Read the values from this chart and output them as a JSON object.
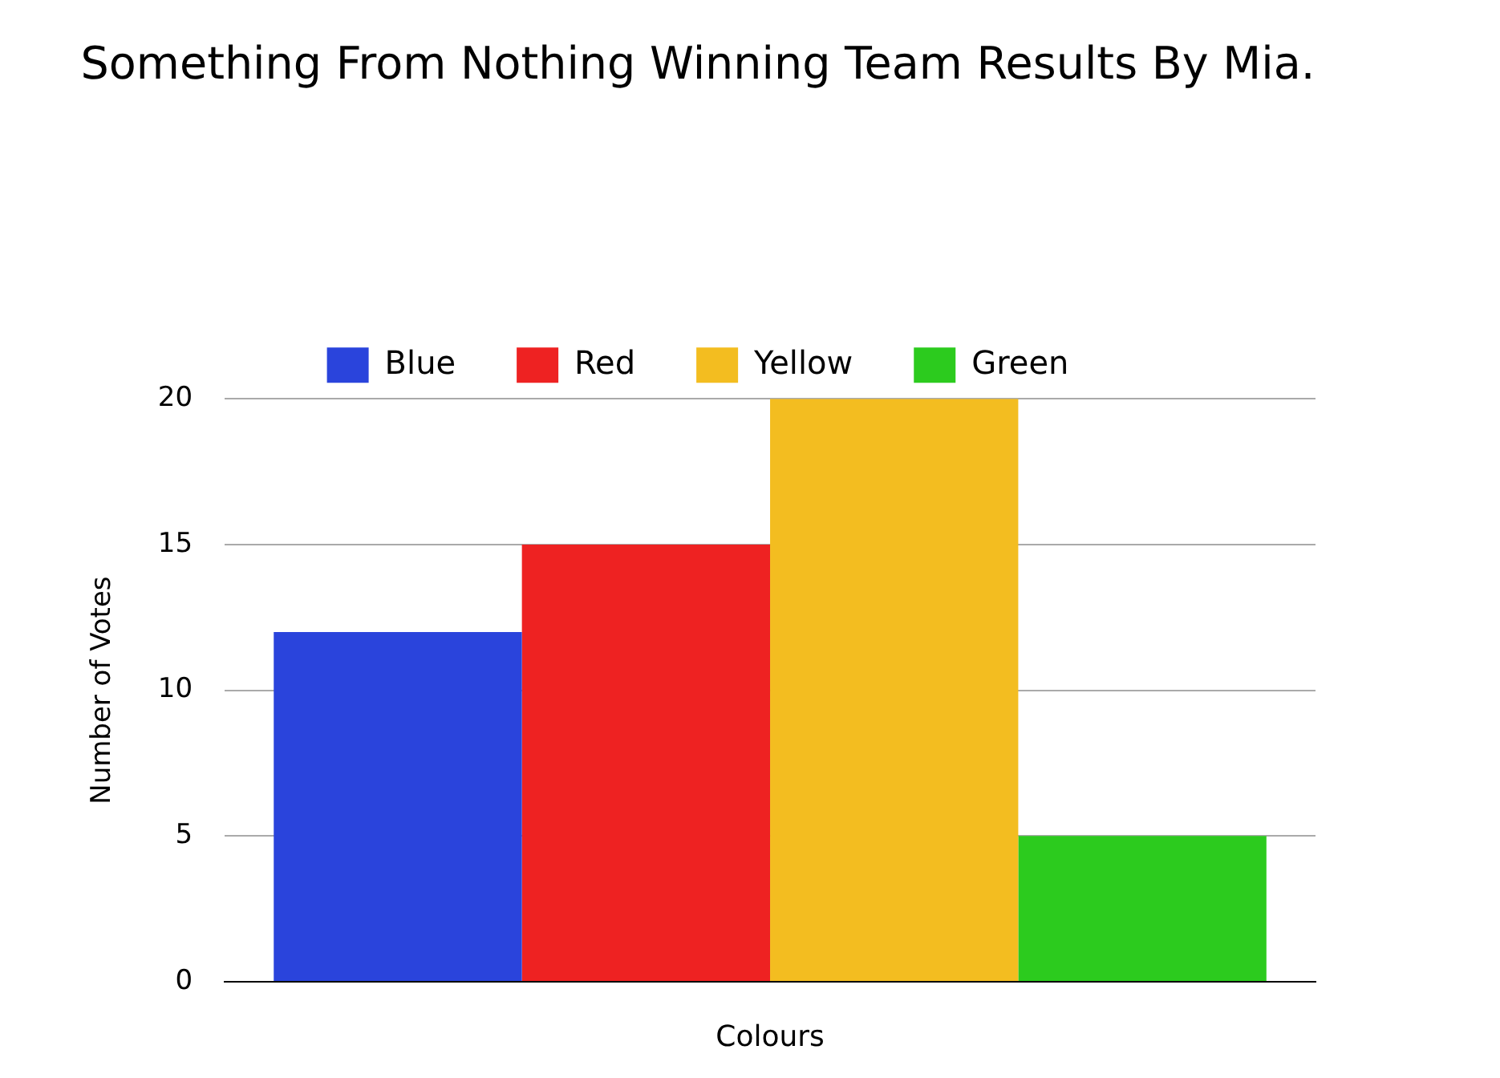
{
  "chart_data": {
    "type": "bar",
    "title": "Something From Nothing Winning Team Results By Mia.",
    "xlabel": "Colours",
    "ylabel": "Number of Votes",
    "categories": [
      null
    ],
    "series": [
      {
        "name": "Blue",
        "color": "#2a44dc",
        "values": [
          12
        ]
      },
      {
        "name": "Red",
        "color": "#ee2222",
        "values": [
          15
        ]
      },
      {
        "name": "Yellow",
        "color": "#f3bd20",
        "values": [
          20
        ]
      },
      {
        "name": "Green",
        "color": "#2ccb1e",
        "values": [
          5
        ]
      }
    ],
    "ylim": [
      0,
      20
    ],
    "yticks": [
      0,
      5,
      10,
      15,
      20
    ],
    "grid": "y",
    "legend": "top"
  }
}
